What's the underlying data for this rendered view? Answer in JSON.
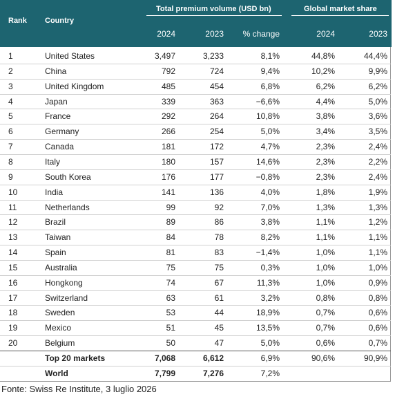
{
  "header": {
    "rank": "Rank",
    "country": "Country",
    "premium_volume": "Total premium volume (USD bn)",
    "market_share": "Global market share",
    "subheaders": [
      "2024",
      "2023",
      "% change",
      "2024",
      "2023"
    ]
  },
  "table": {
    "rows": [
      [
        "1",
        "United States",
        "3,497",
        "3,233",
        "8,1%",
        "44,8%",
        "44,4%"
      ],
      [
        "2",
        "China",
        "792",
        "724",
        "9,4%",
        "10,2%",
        "9,9%"
      ],
      [
        "3",
        "United Kingdom",
        "485",
        "454",
        "6,8%",
        "6,2%",
        "6,2%"
      ],
      [
        "4",
        "Japan",
        "339",
        "363",
        "−6,6%",
        "4,4%",
        "5,0%"
      ],
      [
        "5",
        "France",
        "292",
        "264",
        "10,8%",
        "3,8%",
        "3,6%"
      ],
      [
        "6",
        "Germany",
        "266",
        "254",
        "5,0%",
        "3,4%",
        "3,5%"
      ],
      [
        "7",
        "Canada",
        "181",
        "172",
        "4,7%",
        "2,3%",
        "2,4%"
      ],
      [
        "8",
        "Italy",
        "180",
        "157",
        "14,6%",
        "2,3%",
        "2,2%"
      ],
      [
        "9",
        "South Korea",
        "176",
        "177",
        "−0,8%",
        "2,3%",
        "2,4%"
      ],
      [
        "10",
        "India",
        "141",
        "136",
        "4,0%",
        "1,8%",
        "1,9%"
      ],
      [
        "11",
        "Netherlands",
        "99",
        "92",
        "7,0%",
        "1,3%",
        "1,3%"
      ],
      [
        "12",
        "Brazil",
        "89",
        "86",
        "3,8%",
        "1,1%",
        "1,2%"
      ],
      [
        "13",
        "Taiwan",
        "84",
        "78",
        "8,2%",
        "1,1%",
        "1,1%"
      ],
      [
        "14",
        "Spain",
        "81",
        "83",
        "−1,4%",
        "1,0%",
        "1,1%"
      ],
      [
        "15",
        "Australia",
        "75",
        "75",
        "0,3%",
        "1,0%",
        "1,0%"
      ],
      [
        "16",
        "Hongkong",
        "74",
        "67",
        "11,3%",
        "1,0%",
        "0,9%"
      ],
      [
        "17",
        "Switzerland",
        "63",
        "61",
        "3,2%",
        "0,8%",
        "0,8%"
      ],
      [
        "18",
        "Sweden",
        "53",
        "44",
        "18,9%",
        "0,7%",
        "0,6%"
      ],
      [
        "19",
        "Mexico",
        "51",
        "45",
        "13,5%",
        "0,7%",
        "0,6%"
      ],
      [
        "20",
        "Belgium",
        "50",
        "47",
        "5,0%",
        "0,6%",
        "0,7%"
      ]
    ],
    "totals": [
      [
        "Top 20 markets",
        "7,068",
        "6,612",
        "6,9%",
        "90,6%",
        "90,9%"
      ],
      [
        "World",
        "7,799",
        "7,276",
        "7,2%"
      ]
    ]
  },
  "footer": {
    "source": "Fonte: Swiss Re Institute, 3 luglio 2026"
  }
}
